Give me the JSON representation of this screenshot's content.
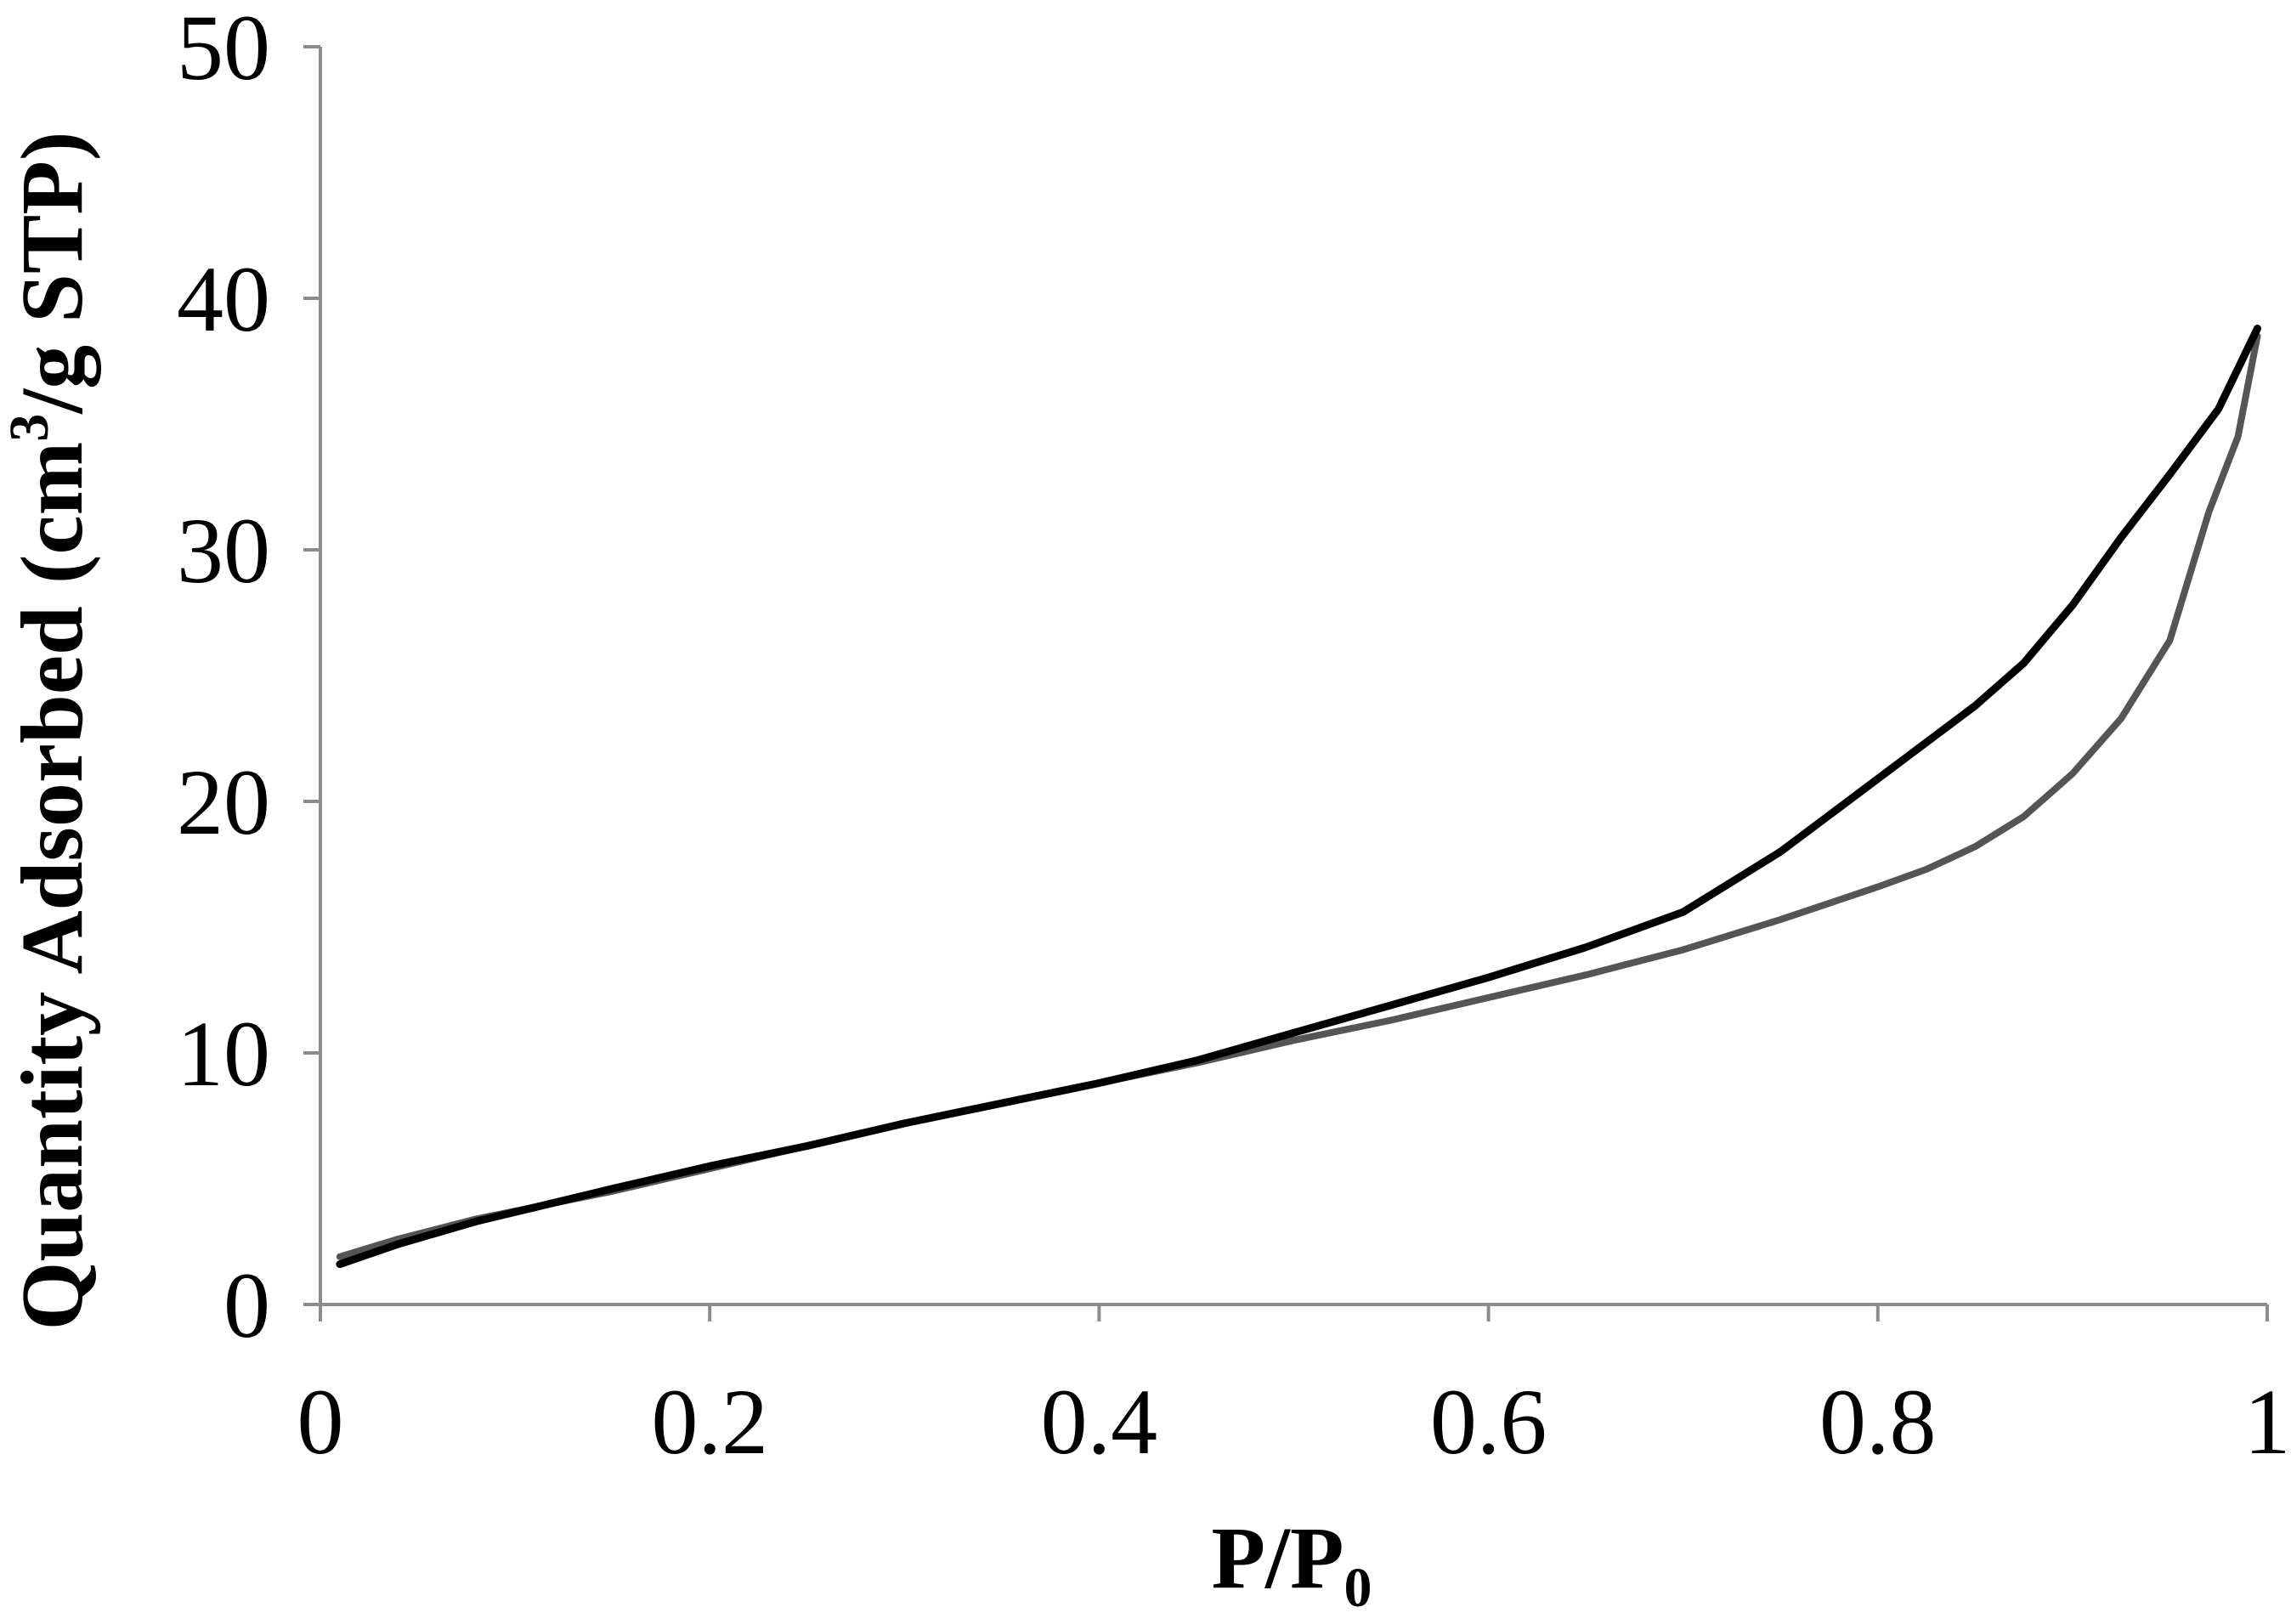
{
  "chart_data": {
    "type": "line",
    "title": "",
    "xlabel": {
      "main": "P/P",
      "sub": "0"
    },
    "ylabel": {
      "before": "Quantity Adsorbed (cm",
      "sup": "3",
      "after": "/g STP)"
    },
    "xlim": [
      0,
      1
    ],
    "ylim": [
      0,
      50
    ],
    "xticks": [
      0,
      0.2,
      0.4,
      0.6,
      0.8,
      1
    ],
    "xtick_labels": [
      "0",
      "0.2",
      "0.4",
      "0.6",
      "0.8",
      "1"
    ],
    "yticks": [
      0,
      10,
      20,
      30,
      40,
      50
    ],
    "ytick_labels": [
      "0",
      "10",
      "20",
      "30",
      "40",
      "50"
    ],
    "grid": false,
    "legend": "none",
    "series": [
      {
        "color": "#555555",
        "x": [
          0.01,
          0.04,
          0.08,
          0.15,
          0.2,
          0.25,
          0.3,
          0.35,
          0.4,
          0.45,
          0.5,
          0.55,
          0.6,
          0.65,
          0.7,
          0.75,
          0.8,
          0.825,
          0.85,
          0.875,
          0.9,
          0.925,
          0.95,
          0.97,
          0.985,
          0.995
        ],
        "y": [
          1.9,
          2.6,
          3.4,
          4.5,
          5.4,
          6.3,
          7.2,
          8.0,
          8.8,
          9.6,
          10.5,
          11.3,
          12.2,
          13.1,
          14.1,
          15.3,
          16.6,
          17.3,
          18.2,
          19.4,
          21.1,
          23.3,
          26.4,
          31.5,
          34.5,
          38.5
        ]
      },
      {
        "color": "#000000",
        "x": [
          0.995,
          0.975,
          0.95,
          0.925,
          0.9,
          0.875,
          0.85,
          0.8,
          0.75,
          0.7,
          0.65,
          0.6,
          0.55,
          0.5,
          0.45,
          0.4,
          0.35,
          0.3,
          0.25,
          0.2,
          0.15,
          0.08,
          0.04,
          0.01
        ],
        "y": [
          38.8,
          35.6,
          33.0,
          30.5,
          27.8,
          25.5,
          23.8,
          20.9,
          18.0,
          15.6,
          14.2,
          13.0,
          11.9,
          10.8,
          9.7,
          8.8,
          8.0,
          7.2,
          6.3,
          5.5,
          4.6,
          3.3,
          2.4,
          1.6
        ]
      }
    ]
  }
}
